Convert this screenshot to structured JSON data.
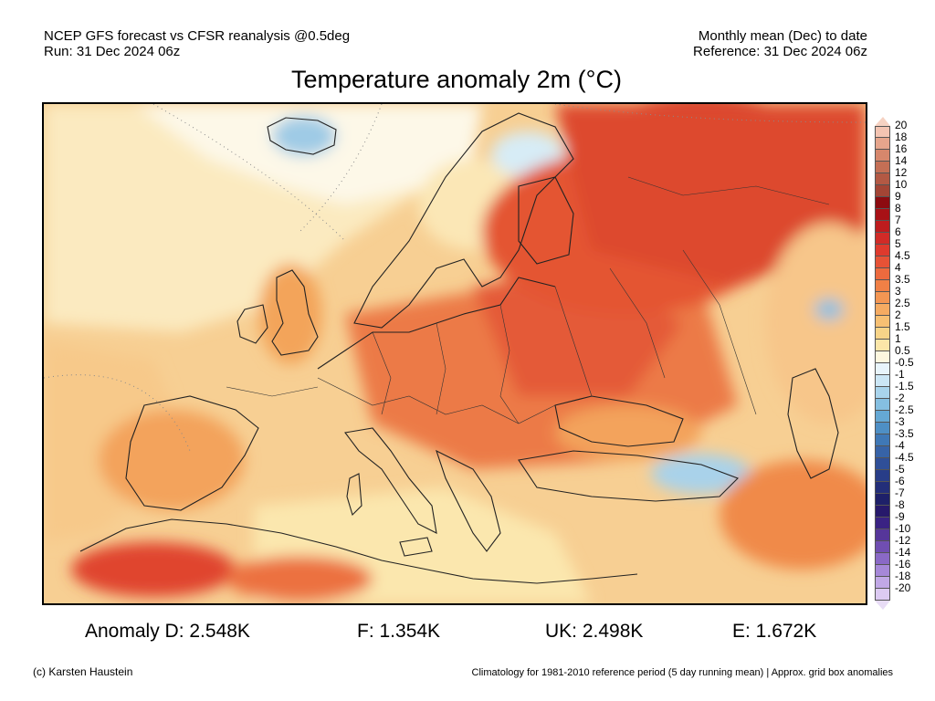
{
  "header": {
    "source_line": "NCEP GFS forecast vs CFSR reanalysis @0.5deg",
    "run_line": "Run: 31 Dec 2024 06z",
    "period_line": "Monthly mean (Dec) to date",
    "reference_line": "Reference: 31 Dec 2024 06z"
  },
  "title": "Temperature anomaly 2m (°C)",
  "legend": {
    "labels": [
      "20",
      "18",
      "16",
      "14",
      "12",
      "10",
      "9",
      "8",
      "7",
      "6",
      "5",
      "4.5",
      "4",
      "3.5",
      "3",
      "2.5",
      "2",
      "1.5",
      "1",
      "0.5",
      "-0.5",
      "-1",
      "-1.5",
      "-2",
      "-2.5",
      "-3",
      "-3.5",
      "-4",
      "-4.5",
      "-5",
      "-6",
      "-7",
      "-8",
      "-9",
      "-10",
      "-12",
      "-14",
      "-16",
      "-18",
      "-20"
    ],
    "colors": [
      "#f3c4b2",
      "#e6a58c",
      "#d6876c",
      "#c46f55",
      "#b35944",
      "#a34535",
      "#8c0b10",
      "#a81116",
      "#be1c1e",
      "#d12b27",
      "#df3a2d",
      "#e65236",
      "#ec6a3e",
      "#f08046",
      "#f39653",
      "#f5ab62",
      "#f7c073",
      "#f8d488",
      "#fbe6a8",
      "#fdf7df",
      "#e8f4fb",
      "#cbe6f5",
      "#a9d4ec",
      "#85bfe1",
      "#65a8d4",
      "#4e8fc5",
      "#3f78b6",
      "#3763a7",
      "#2f4f98",
      "#283d88",
      "#232e79",
      "#1e2069",
      "#27196b",
      "#3a2283",
      "#56369a",
      "#704eb1",
      "#8a69c6",
      "#a688d8",
      "#c1a8e6",
      "#dccaf2"
    ],
    "low_color": "#e8dcf6",
    "high_color": "#f6d2c2"
  },
  "stats": [
    {
      "label": "Anomaly D: 2.548K"
    },
    {
      "label": "F: 1.354K"
    },
    {
      "label": "UK: 2.498K"
    },
    {
      "label": "E: 1.672K"
    }
  ],
  "footer": {
    "credit": "(c) Karsten Haustein",
    "note": "Climatology for 1981-2010 reference period (5 day running mean) | Approx. grid box anomalies"
  }
}
